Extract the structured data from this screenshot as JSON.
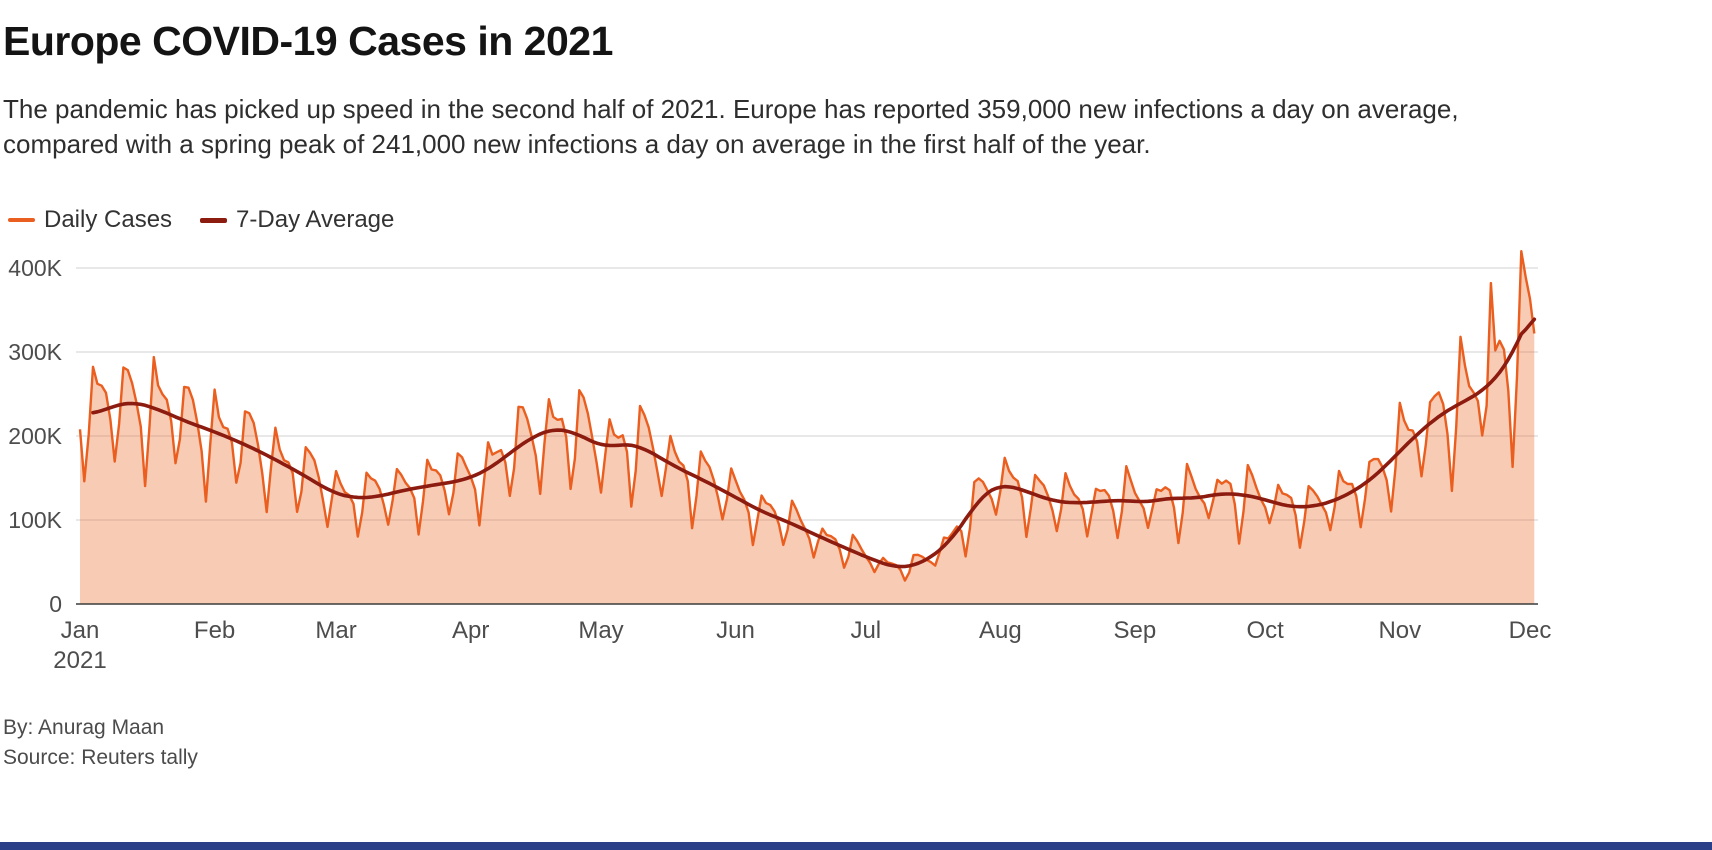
{
  "header": {
    "title": "Europe COVID-19 Cases in 2021",
    "subtitle_line1": "The pandemic has picked up speed in the second half of 2021. Europe has reported 359,000 new infections a day on average,",
    "subtitle_line2": "compared with a spring peak of 241,000 new infections a day on average in the first half of the year."
  },
  "legend": {
    "items": [
      {
        "label": "Daily Cases",
        "color": "#EA5E1F"
      },
      {
        "label": "7-Day Average",
        "color": "#8C1B10"
      }
    ]
  },
  "footer": {
    "byline": "By: Anurag Maan",
    "source": "Source: Reuters tally"
  },
  "colors": {
    "gridline": "#DADADA",
    "axis_line": "#3C3C3C",
    "brand_bar": "#2A3F87",
    "tick_text": "#4D4D4D"
  },
  "chart_data": {
    "type": "line+area",
    "title": "Europe COVID-19 Cases in 2021",
    "xlabel": "",
    "ylabel": "",
    "unit_note": "values_in_thousands_of_cases_per_day",
    "ylim": [
      0,
      430
    ],
    "grid": "horizontal",
    "legend_position": "top-left",
    "key_stats": {
      "second_half_daily_average": 359000,
      "first_half_spring_peak_daily_average": 241000
    },
    "x_axis": {
      "months": [
        "Jan",
        "Feb",
        "Mar",
        "Apr",
        "May",
        "Jun",
        "Jul",
        "Aug",
        "Sep",
        "Oct",
        "Nov",
        "Dec"
      ],
      "month_start_day": [
        0,
        31,
        59,
        90,
        120,
        151,
        181,
        212,
        243,
        273,
        304,
        334
      ],
      "year_label": "2021",
      "last_day": 335
    },
    "y_axis": {
      "ticks": [
        {
          "v": 0,
          "label": "0"
        },
        {
          "v": 100,
          "label": "100K"
        },
        {
          "v": 200,
          "label": "200K"
        },
        {
          "v": 300,
          "label": "300K"
        },
        {
          "v": 400,
          "label": "400K"
        }
      ]
    },
    "series": [
      {
        "name": "Daily Cases",
        "type": "area+line",
        "color": "#EA5E1F",
        "fill": "#E95D1A",
        "fill_opacity": 0.32,
        "derivation": {
          "weekly_pattern": [
            -0.33,
            -0.1,
            0.22,
            0.15,
            0.1,
            0.04,
            -0.08
          ],
          "pattern_offset": 6,
          "amplitude_mod": 0.3,
          "amplitude_freq": 0.5,
          "noise_amp": 0.04,
          "noise_freq": 1.31,
          "min": 28,
          "max": 421,
          "overrides": [
            [
              325,
              382
            ],
            [
              332,
              420
            ],
            [
              335,
              322
            ]
          ]
        }
      },
      {
        "name": "7-Day Average",
        "type": "line",
        "color": "#8C1B10",
        "points_k": [
          [
            3,
            226
          ],
          [
            8,
            236
          ],
          [
            12,
            241
          ],
          [
            18,
            232
          ],
          [
            24,
            218
          ],
          [
            31,
            205
          ],
          [
            38,
            190
          ],
          [
            45,
            172
          ],
          [
            52,
            152
          ],
          [
            58,
            133
          ],
          [
            63,
            126
          ],
          [
            68,
            127
          ],
          [
            75,
            136
          ],
          [
            82,
            142
          ],
          [
            89,
            148
          ],
          [
            95,
            163
          ],
          [
            100,
            184
          ],
          [
            105,
            201
          ],
          [
            109,
            209
          ],
          [
            113,
            206
          ],
          [
            117,
            196
          ],
          [
            121,
            186
          ],
          [
            125,
            191
          ],
          [
            129,
            188
          ],
          [
            133,
            176
          ],
          [
            138,
            161
          ],
          [
            143,
            149
          ],
          [
            150,
            130
          ],
          [
            157,
            110
          ],
          [
            163,
            98
          ],
          [
            170,
            81
          ],
          [
            177,
            65
          ],
          [
            183,
            52
          ],
          [
            188,
            43
          ],
          [
            192,
            45
          ],
          [
            196,
            55
          ],
          [
            200,
            72
          ],
          [
            204,
            100
          ],
          [
            207,
            125
          ],
          [
            210,
            138
          ],
          [
            213,
            142
          ],
          [
            216,
            138
          ],
          [
            220,
            130
          ],
          [
            224,
            123
          ],
          [
            228,
            120
          ],
          [
            232,
            121
          ],
          [
            236,
            122
          ],
          [
            240,
            124
          ],
          [
            244,
            121
          ],
          [
            248,
            123
          ],
          [
            252,
            127
          ],
          [
            256,
            125
          ],
          [
            260,
            129
          ],
          [
            264,
            132
          ],
          [
            268,
            130
          ],
          [
            272,
            126
          ],
          [
            276,
            119
          ],
          [
            280,
            115
          ],
          [
            284,
            116
          ],
          [
            288,
            121
          ],
          [
            292,
            130
          ],
          [
            296,
            143
          ],
          [
            300,
            160
          ],
          [
            304,
            182
          ],
          [
            308,
            202
          ],
          [
            312,
            220
          ],
          [
            316,
            234
          ],
          [
            320,
            244
          ],
          [
            324,
            257
          ],
          [
            327,
            274
          ],
          [
            330,
            297
          ],
          [
            332,
            320
          ],
          [
            334,
            345
          ],
          [
            335,
            358
          ]
        ]
      }
    ]
  }
}
